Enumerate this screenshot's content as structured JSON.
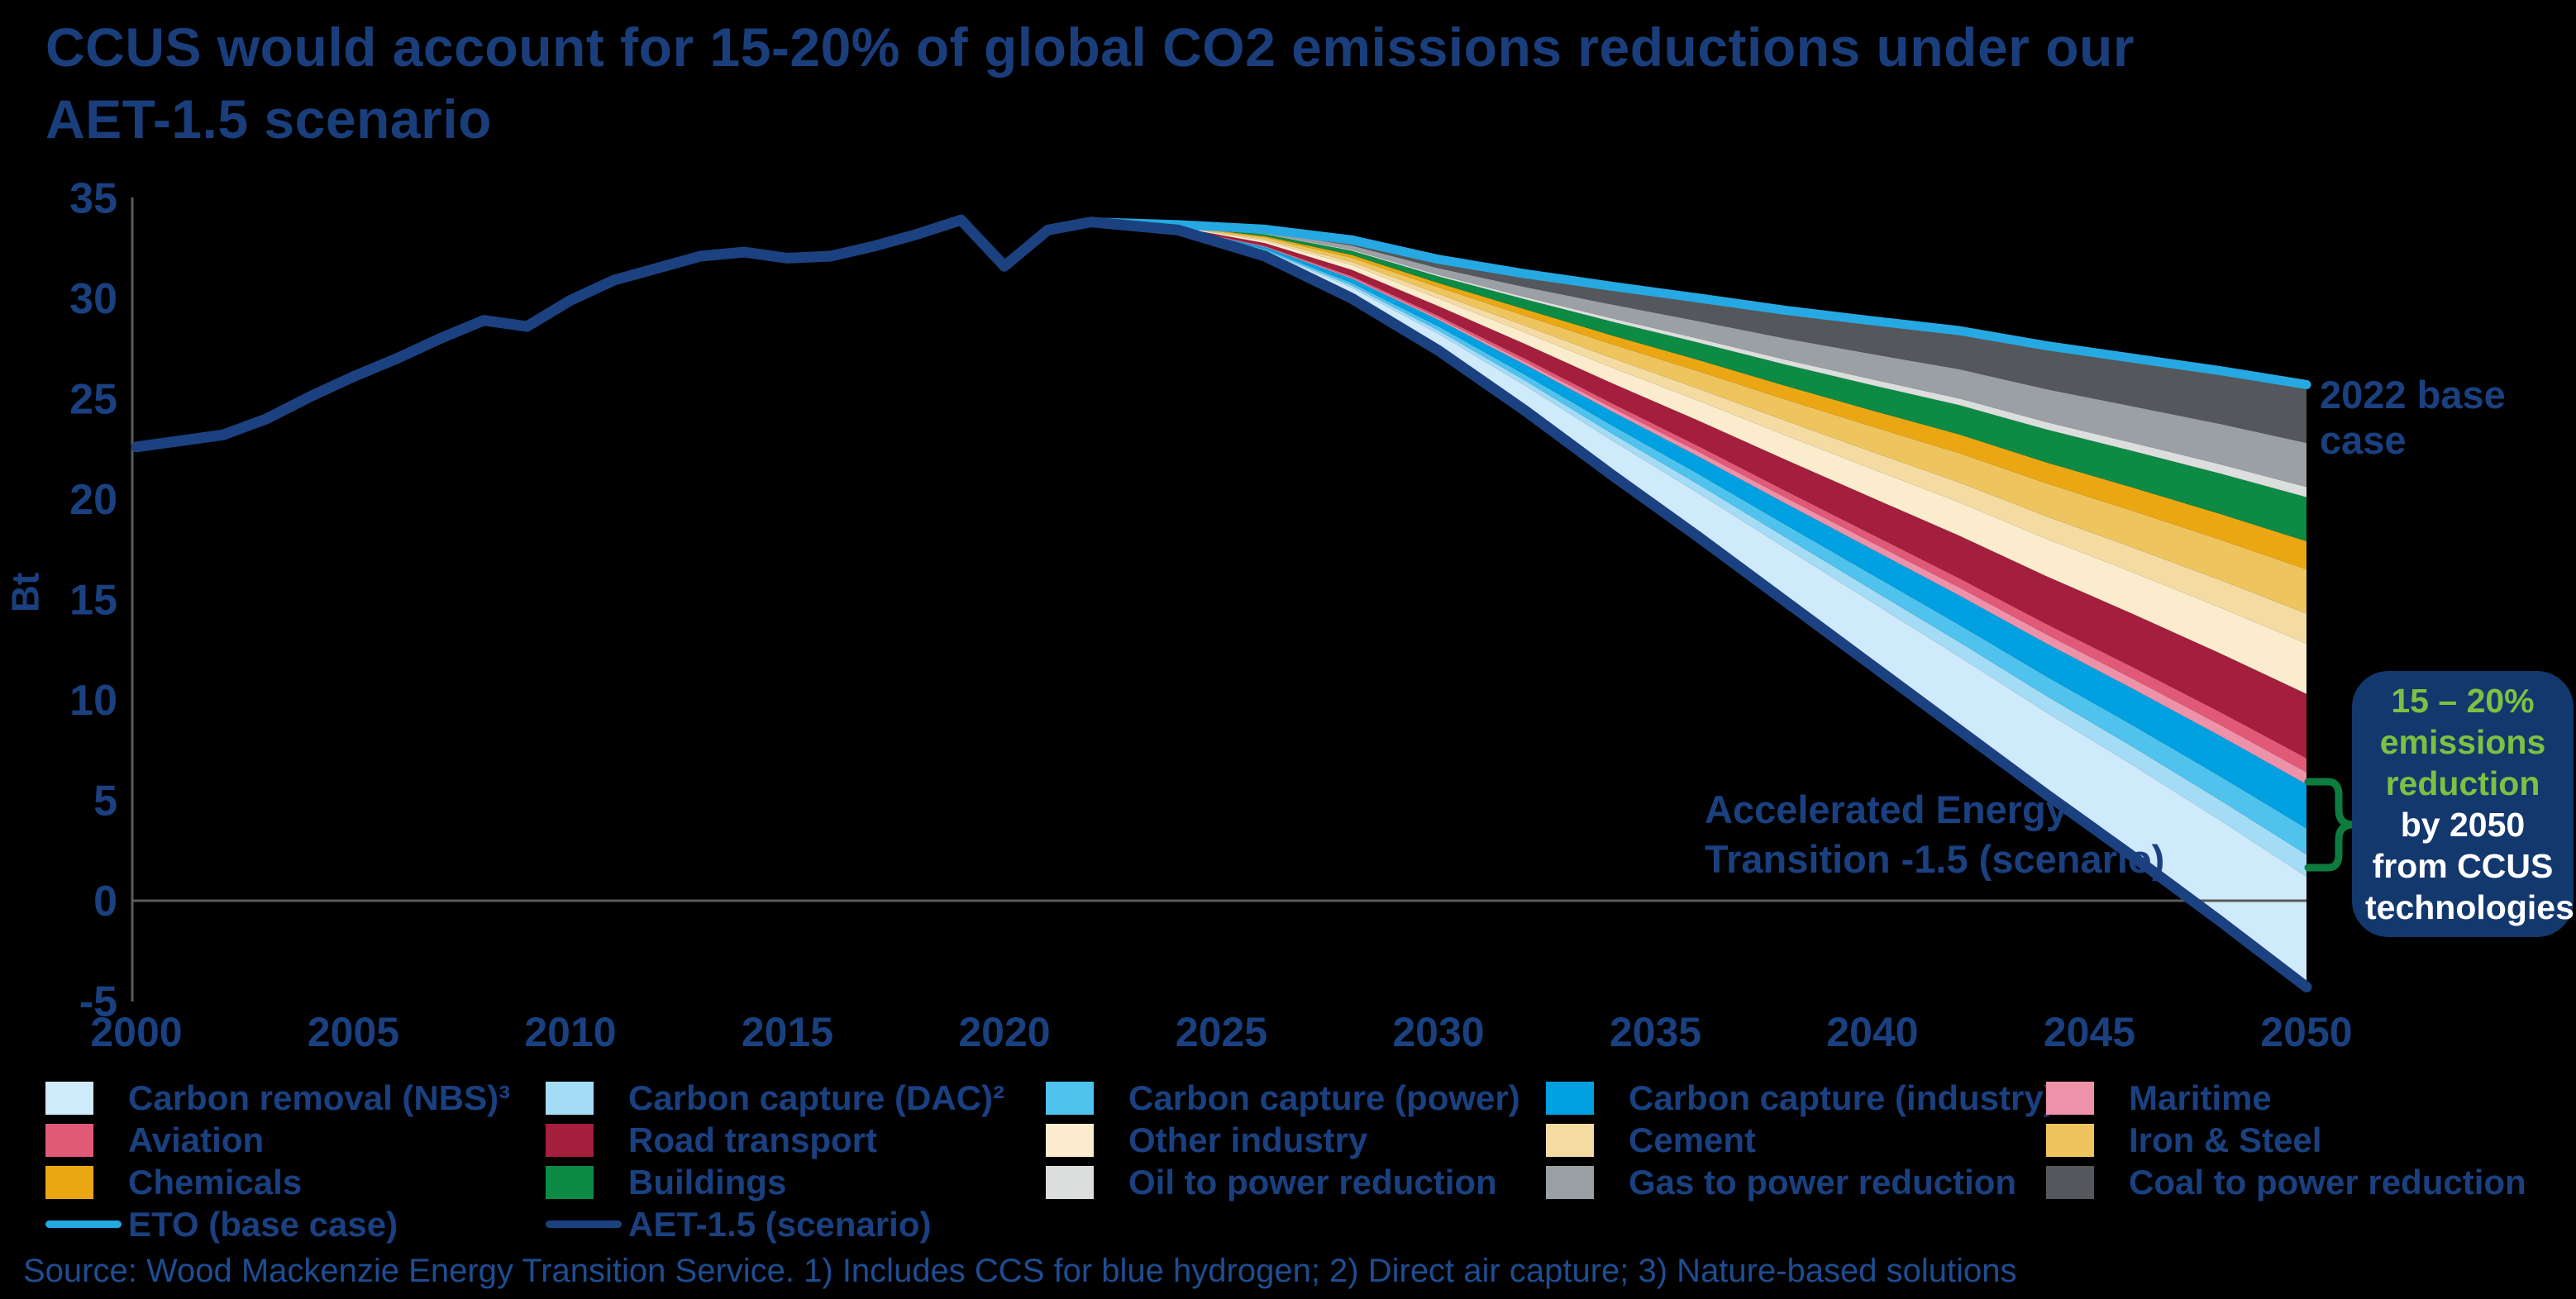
{
  "title": "CCUS would account for 15-20% of global CO2 emissions reductions under our AET-1.5 scenario",
  "annotations": {
    "base_case_label": "2022 base case",
    "aet_scenario_label": "Accelerated Energy Transition -1.5 (scenario)",
    "callout_highlight": "15 – 20% emissions reduction",
    "callout_rest": " by 2050 from CCUS technologies"
  },
  "source": "Source: Wood Mackenzie Energy Transition Service. 1) Includes CCS for blue hydrogen; 2) Direct air capture; 3) Nature-based solutions",
  "legend": {
    "items": [
      {
        "label": "Carbon removal (NBS)³"
      },
      {
        "label": "Carbon capture (DAC)²"
      },
      {
        "label": "Carbon capture (power)"
      },
      {
        "label": "Carbon capture (industry)¹"
      },
      {
        "label": "Maritime"
      },
      {
        "label": "Aviation"
      },
      {
        "label": "Road transport"
      },
      {
        "label": "Other industry"
      },
      {
        "label": "Cement"
      },
      {
        "label": "Iron & Steel"
      },
      {
        "label": "Chemicals"
      },
      {
        "label": "Buildings"
      },
      {
        "label": "Oil to power reduction"
      },
      {
        "label": "Gas to power reduction"
      },
      {
        "label": "Coal to power reduction"
      }
    ],
    "line_items": [
      {
        "label": "ETO (base case)"
      },
      {
        "label": "AET-1.5 (scenario)"
      }
    ]
  },
  "chart_data": {
    "type": "area",
    "title": "CCUS would account for 15-20% of global CO2 emissions reductions under our AET-1.5 scenario",
    "xlabel": "",
    "ylabel": "Bt",
    "ylim": [
      -5,
      35
    ],
    "xlim": [
      2000,
      2050
    ],
    "y_ticks": [
      35,
      30,
      25,
      20,
      15,
      10,
      5,
      0,
      -5
    ],
    "x_ticks": [
      2000,
      2005,
      2010,
      2015,
      2020,
      2025,
      2030,
      2035,
      2040,
      2045,
      2050
    ],
    "grid": false,
    "legend_position": "bottom",
    "history": {
      "name": "Global CO2 emissions (history, Bt)",
      "years": [
        2000,
        2001,
        2002,
        2003,
        2004,
        2005,
        2006,
        2007,
        2008,
        2009,
        2010,
        2011,
        2012,
        2013,
        2014,
        2015,
        2016,
        2017,
        2018,
        2019,
        2020,
        2021,
        2022
      ],
      "values": [
        22.6,
        22.9,
        23.2,
        24.0,
        25.1,
        26.1,
        27.0,
        28.0,
        28.9,
        28.6,
        29.9,
        30.9,
        31.5,
        32.1,
        32.3,
        32.0,
        32.1,
        32.6,
        33.2,
        33.9,
        31.6,
        33.4,
        33.8
      ]
    },
    "projection": {
      "years": [
        2022,
        2024,
        2026,
        2028,
        2030,
        2032,
        2034,
        2036,
        2038,
        2040,
        2042,
        2044,
        2046,
        2048,
        2050
      ],
      "aet_net": [
        33.8,
        33.4,
        32.1,
        30.0,
        27.4,
        24.4,
        21.2,
        18.1,
        14.9,
        11.7,
        8.5,
        5.3,
        2.2,
        -1.0,
        -4.3
      ],
      "eto_base_case": [
        33.8,
        33.65,
        33.4,
        32.9,
        31.9,
        31.2,
        30.6,
        30.0,
        29.4,
        28.9,
        28.4,
        27.6,
        27.0,
        26.4,
        25.7
      ]
    },
    "series": [
      {
        "name": "Carbon removal (NBS)³",
        "slug": "carbon-removal-nbs",
        "color": "#cfeafb",
        "values": [
          0,
          0.05,
          0.24,
          0.53,
          0.83,
          1.25,
          1.72,
          2.18,
          2.66,
          3.15,
          3.65,
          4.09,
          4.55,
          5.02,
          5.5
        ]
      },
      {
        "name": "Carbon capture (DAC)²",
        "slug": "carbon-capture-dac",
        "color": "#a4dcf6",
        "values": [
          0,
          0.01,
          0.05,
          0.11,
          0.17,
          0.25,
          0.34,
          0.44,
          0.53,
          0.63,
          0.73,
          0.82,
          0.91,
          1.0,
          1.1
        ]
      },
      {
        "name": "Carbon capture (power)",
        "slug": "carbon-capture-power",
        "color": "#4fc2ed",
        "values": [
          0,
          0.01,
          0.06,
          0.13,
          0.2,
          0.29,
          0.41,
          0.52,
          0.63,
          0.75,
          0.86,
          0.97,
          1.07,
          1.19,
          1.3
        ]
      },
      {
        "name": "Carbon capture (industry)¹",
        "slug": "carbon-capture-industry",
        "color": "#00a0e1",
        "values": [
          0,
          0.02,
          0.1,
          0.21,
          0.33,
          0.5,
          0.69,
          0.87,
          1.06,
          1.26,
          1.46,
          1.64,
          1.82,
          2.01,
          2.2
        ]
      },
      {
        "name": "Maritime",
        "slug": "maritime",
        "color": "#ee92aa",
        "values": [
          0,
          0.01,
          0.03,
          0.06,
          0.09,
          0.14,
          0.19,
          0.24,
          0.29,
          0.34,
          0.4,
          0.45,
          0.5,
          0.55,
          0.6
        ]
      },
      {
        "name": "Aviation",
        "slug": "aviation",
        "color": "#e05a78",
        "values": [
          0,
          0.01,
          0.03,
          0.07,
          0.11,
          0.16,
          0.22,
          0.28,
          0.34,
          0.4,
          0.46,
          0.52,
          0.58,
          0.64,
          0.7
        ]
      },
      {
        "name": "Road transport",
        "slug": "road-transport",
        "color": "#a41e3d",
        "values": [
          0,
          0.03,
          0.14,
          0.31,
          0.48,
          0.73,
          1.0,
          1.27,
          1.55,
          1.83,
          2.12,
          2.38,
          2.65,
          2.92,
          3.2
        ]
      },
      {
        "name": "Other industry",
        "slug": "other-industry",
        "color": "#faeccd",
        "values": [
          0,
          0.02,
          0.11,
          0.24,
          0.38,
          0.57,
          0.78,
          0.99,
          1.21,
          1.43,
          1.66,
          1.86,
          2.07,
          2.28,
          2.5
        ]
      },
      {
        "name": "Cement",
        "slug": "cement",
        "color": "#f4dba2",
        "values": [
          0,
          0.01,
          0.07,
          0.15,
          0.23,
          0.34,
          0.47,
          0.6,
          0.73,
          0.86,
          0.99,
          1.12,
          1.24,
          1.37,
          1.5
        ]
      },
      {
        "name": "Iron & Steel",
        "slug": "iron-steel",
        "color": "#eec45f",
        "values": [
          0,
          0.02,
          0.1,
          0.21,
          0.33,
          0.5,
          0.69,
          0.87,
          1.06,
          1.26,
          1.46,
          1.64,
          1.82,
          2.01,
          2.2
        ]
      },
      {
        "name": "Chemicals",
        "slug": "chemicals",
        "color": "#eaa713",
        "values": [
          0,
          0.01,
          0.06,
          0.14,
          0.21,
          0.32,
          0.44,
          0.56,
          0.68,
          0.8,
          0.93,
          1.04,
          1.16,
          1.28,
          1.4
        ]
      },
      {
        "name": "Buildings",
        "slug": "buildings",
        "color": "#0d8a43",
        "values": [
          0,
          0.02,
          0.1,
          0.21,
          0.33,
          0.5,
          0.69,
          0.87,
          1.06,
          1.26,
          1.46,
          1.64,
          1.82,
          2.01,
          2.2
        ]
      },
      {
        "name": "Oil to power reduction",
        "slug": "oil-to-power",
        "color": "#dcdddd",
        "values": [
          0,
          0.01,
          0.02,
          0.05,
          0.08,
          0.11,
          0.16,
          0.2,
          0.24,
          0.29,
          0.33,
          0.37,
          0.41,
          0.46,
          0.5
        ]
      },
      {
        "name": "Gas to power reduction",
        "slug": "gas-to-power",
        "color": "#9aa0a4",
        "values": [
          0,
          0.02,
          0.1,
          0.21,
          0.33,
          0.5,
          0.69,
          0.87,
          1.06,
          1.26,
          1.46,
          1.64,
          1.82,
          2.01,
          2.2
        ]
      },
      {
        "name": "Coal to power reduction",
        "slug": "coal-to-power",
        "color": "#54575b",
        "values": [
          0,
          0.02,
          0.13,
          0.28,
          0.44,
          0.66,
          0.91,
          1.15,
          1.4,
          1.66,
          1.92,
          2.16,
          2.4,
          2.65,
          2.9
        ]
      }
    ],
    "line_colors": {
      "eto": "#26a9e2",
      "aet": "#1c4180"
    },
    "accent_colors": {
      "bracket_green": "#0d7c3e",
      "callout_bg": "#13386e",
      "callout_green": "#7cc142",
      "navy_text": "#1a4080",
      "axis_gray": "#5a5a5a"
    }
  }
}
